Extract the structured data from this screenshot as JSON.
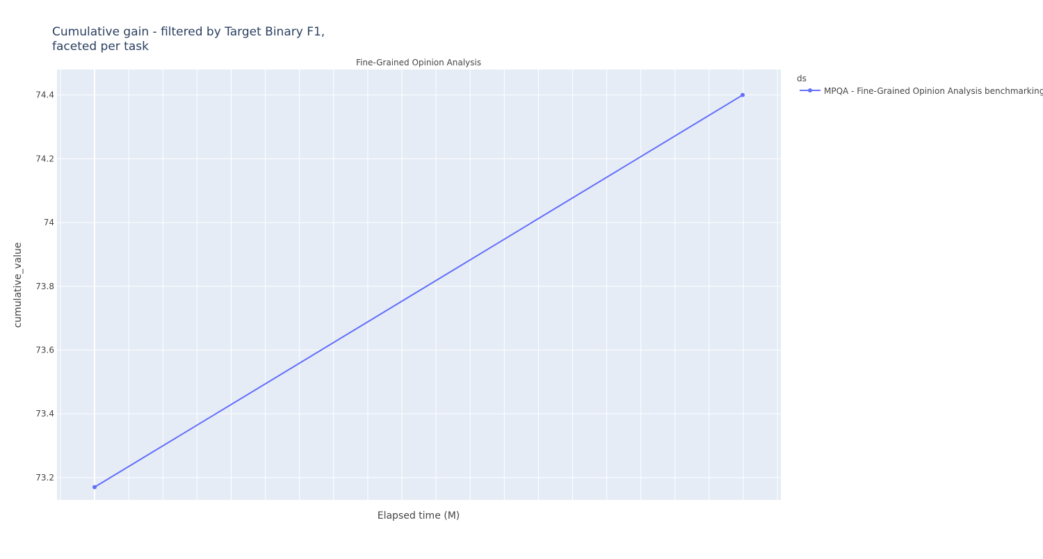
{
  "chart_data": {
    "type": "line",
    "title_lines": [
      "Cumulative gain - filtered by Target Binary F1,",
      "faceted per task"
    ],
    "subplot_title": "Fine-Grained Opinion Analysis",
    "xlabel": "Elapsed time (M)",
    "ylabel": "cumulative_value",
    "ylim": [
      73.13,
      74.48
    ],
    "yticks": [
      73.2,
      73.4,
      73.6,
      73.8,
      74,
      74.2,
      74.4
    ],
    "ytick_labels": [
      "73.2",
      "73.4",
      "73.6",
      "73.8",
      "74",
      "74.2",
      "74.4"
    ],
    "x_tick_labels_shown": false,
    "grid": true,
    "legend_title": "ds",
    "legend_position": "top-right, outside plot",
    "series": [
      {
        "name": "MPQA - Fine-Grained Opinion Analysis benchmarking",
        "color": "#636efa",
        "mode": "lines+markers",
        "y": [
          73.17,
          74.4
        ]
      }
    ]
  },
  "colors": {
    "plot_background": "#e5ecf6",
    "grid": "#ffffff",
    "text": "#444444",
    "title_text": "#2a3f5f"
  }
}
